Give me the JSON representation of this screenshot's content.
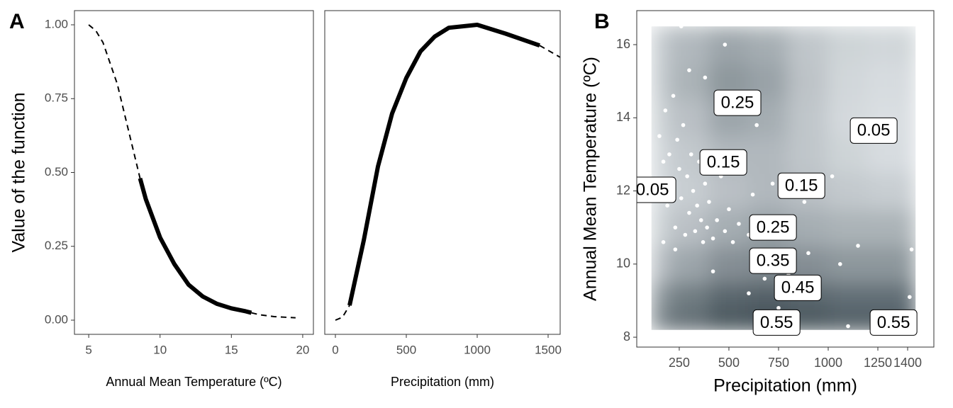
{
  "chart_data": [
    {
      "type": "line",
      "panel_label": "A",
      "xlabel": "Annual Mean Temperature (ºC)",
      "ylabel": "Value of the function",
      "xlim": [
        4.0,
        20.75
      ],
      "ylim": [
        -0.048,
        1.048
      ],
      "xticks": [
        5,
        10,
        15,
        20
      ],
      "yticks": [
        {
          "value": 0,
          "label": "0.00"
        },
        {
          "value": 0.25,
          "label": "0.25"
        },
        {
          "value": 0.5,
          "label": "0.50"
        },
        {
          "value": 0.75,
          "label": "0.75"
        },
        {
          "value": 1,
          "label": "1.00"
        }
      ],
      "x": [
        5,
        5.5,
        6,
        7,
        8,
        8.6,
        9,
        10,
        11,
        12,
        13,
        14,
        15,
        16,
        16.4,
        17,
        18,
        19.5
      ],
      "series": [
        {
          "color": "#000000",
          "dashed": true,
          "values": [
            1.0,
            0.98,
            0.94,
            0.8,
            0.6,
            0.48,
            null,
            null,
            null,
            null,
            null,
            null,
            null,
            null,
            0.025,
            0.018,
            0.012,
            0.008
          ]
        },
        {
          "color": "#000000",
          "dashed": false,
          "values": [
            null,
            null,
            null,
            null,
            null,
            0.48,
            0.41,
            0.28,
            0.19,
            0.12,
            0.08,
            0.055,
            0.04,
            0.03,
            0.025,
            null,
            null,
            null
          ]
        }
      ]
    },
    {
      "type": "line",
      "xlabel": "Precipitation (mm)",
      "xlim": [
        -75,
        1585
      ],
      "ylim": [
        -0.048,
        1.048
      ],
      "xticks": [
        0,
        500,
        1000,
        1500
      ],
      "x": [
        0,
        50,
        100,
        200,
        300,
        400,
        500,
        600,
        700,
        800,
        1000,
        1200,
        1440,
        1585
      ],
      "series": [
        {
          "color": "#000000",
          "dashed": true,
          "values": [
            0.0,
            0.01,
            0.05,
            null,
            null,
            null,
            null,
            null,
            null,
            null,
            null,
            null,
            0.93,
            0.89
          ]
        },
        {
          "color": "#000000",
          "dashed": false,
          "values": [
            null,
            null,
            0.05,
            0.27,
            0.52,
            0.7,
            0.82,
            0.91,
            0.96,
            0.99,
            1.0,
            0.97,
            0.93,
            null
          ]
        }
      ]
    },
    {
      "type": "contour",
      "panel_label": "B",
      "xlabel": "Precipitation (mm)",
      "ylabel": "Annual Mean Temperature (ºC)",
      "xlim": [
        36,
        1532
      ],
      "ylim": [
        7.73,
        16.93
      ],
      "xticks": [
        250,
        500,
        750,
        1000,
        1250,
        1400
      ],
      "yticks": [
        8,
        10,
        12,
        14,
        16
      ],
      "zlim": [
        0,
        0.62
      ],
      "low_color": "#e6eaed",
      "high_color": "#2f3e46",
      "grid_x": [
        110,
        300,
        500,
        700,
        900,
        1100,
        1300,
        1440
      ],
      "grid_y": [
        8.2,
        9,
        10,
        11,
        12,
        13,
        14,
        15,
        16,
        16.5
      ],
      "z": [
        [
          0.4,
          0.5,
          0.6,
          0.62,
          0.6,
          0.58,
          0.58,
          0.58
        ],
        [
          0.3,
          0.4,
          0.48,
          0.5,
          0.48,
          0.45,
          0.45,
          0.45
        ],
        [
          0.15,
          0.25,
          0.33,
          0.35,
          0.33,
          0.3,
          0.3,
          0.3
        ],
        [
          0.08,
          0.15,
          0.22,
          0.26,
          0.22,
          0.2,
          0.2,
          0.2
        ],
        [
          0.05,
          0.1,
          0.15,
          0.18,
          0.15,
          0.12,
          0.1,
          0.1
        ],
        [
          0.06,
          0.12,
          0.18,
          0.18,
          0.13,
          0.08,
          0.05,
          0.05
        ],
        [
          0.08,
          0.15,
          0.25,
          0.22,
          0.13,
          0.06,
          0.04,
          0.05
        ],
        [
          0.1,
          0.2,
          0.3,
          0.26,
          0.14,
          0.07,
          0.05,
          0.06
        ],
        [
          0.1,
          0.18,
          0.25,
          0.22,
          0.13,
          0.08,
          0.07,
          0.08
        ],
        [
          0.1,
          0.17,
          0.23,
          0.2,
          0.13,
          0.08,
          0.07,
          0.08
        ]
      ],
      "points": {
        "color": "#ffffff",
        "x": [
          150,
          170,
          180,
          190,
          200,
          210,
          220,
          230,
          240,
          250,
          260,
          270,
          280,
          290,
          300,
          310,
          320,
          330,
          340,
          350,
          360,
          370,
          380,
          390,
          400,
          420,
          440,
          460,
          480,
          500,
          520,
          550,
          600,
          620,
          650,
          680,
          700,
          720,
          750,
          800,
          830,
          880,
          900,
          950,
          1020,
          1060,
          1100,
          1150,
          1420,
          1410,
          480,
          380,
          300,
          260,
          640,
          560,
          230,
          170,
          420,
          600
        ],
        "y": [
          13.5,
          12.8,
          14.2,
          11.6,
          13.0,
          12.2,
          14.6,
          11.0,
          13.4,
          12.6,
          11.8,
          13.8,
          10.8,
          12.4,
          11.4,
          13.0,
          12.0,
          10.9,
          11.6,
          12.8,
          11.2,
          10.6,
          12.2,
          11.0,
          11.7,
          10.7,
          11.2,
          12.4,
          10.9,
          11.5,
          10.6,
          11.1,
          10.8,
          11.9,
          10.2,
          9.6,
          11.3,
          12.2,
          8.8,
          9.7,
          10.8,
          11.7,
          10.3,
          9.1,
          12.4,
          10.0,
          8.3,
          10.5,
          10.4,
          9.1,
          16.0,
          15.1,
          15.3,
          16.5,
          13.8,
          13.0,
          10.4,
          10.6,
          9.8,
          9.2
        ]
      },
      "contour_labels": [
        {
          "level": 0.25,
          "x": 543,
          "y": 14.41
        },
        {
          "level": 0.05,
          "x": 1229,
          "y": 13.65
        },
        {
          "level": 0.15,
          "x": 472,
          "y": 12.78
        },
        {
          "level": 0.05,
          "x": 115,
          "y": 12.03
        },
        {
          "level": 0.15,
          "x": 865,
          "y": 12.14
        },
        {
          "level": 0.25,
          "x": 722,
          "y": 11.0
        },
        {
          "level": 0.35,
          "x": 722,
          "y": 10.09
        },
        {
          "level": 0.45,
          "x": 847,
          "y": 9.35
        },
        {
          "level": 0.55,
          "x": 740,
          "y": 8.4
        },
        {
          "level": 0.55,
          "x": 1329,
          "y": 8.4
        }
      ]
    }
  ]
}
